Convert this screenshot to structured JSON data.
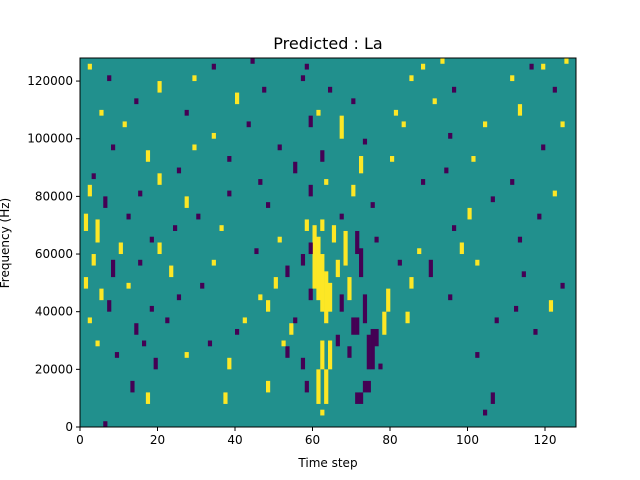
{
  "chart_data": {
    "type": "heatmap",
    "title": "Predicted : La",
    "xlabel": "Time step",
    "ylabel": "Frequency (Hz)",
    "xlim": [
      0,
      128
    ],
    "ylim": [
      0,
      128000
    ],
    "x_ticks": [
      0,
      20,
      40,
      60,
      80,
      100,
      120
    ],
    "y_ticks": [
      0,
      20000,
      40000,
      60000,
      80000,
      100000,
      120000
    ],
    "x_tick_labels": [
      "0",
      "20",
      "40",
      "60",
      "80",
      "100",
      "120"
    ],
    "y_tick_labels": [
      "0",
      "20000",
      "40000",
      "60000",
      "80000",
      "100000",
      "120000"
    ],
    "grid": false,
    "colormap": [
      "#440154",
      "#21908d",
      "#fde725"
    ],
    "background_value": 0,
    "value_levels": [
      -1,
      0,
      1
    ],
    "cells": [
      {
        "x": 6,
        "y0": 0,
        "y1": 2000,
        "v": -1
      },
      {
        "x": 62,
        "y0": 4000,
        "y1": 6000,
        "v": 1
      },
      {
        "x": 104,
        "y0": 4000,
        "y1": 6000,
        "v": -1
      },
      {
        "x": 17,
        "y0": 8000,
        "y1": 12000,
        "v": 1
      },
      {
        "x": 37,
        "y0": 8000,
        "y1": 12000,
        "v": 1
      },
      {
        "x": 61,
        "y0": 8000,
        "y1": 20000,
        "v": 1
      },
      {
        "x": 63,
        "y0": 8000,
        "y1": 20000,
        "v": 1
      },
      {
        "x": 71,
        "y0": 8000,
        "y1": 12000,
        "v": -1
      },
      {
        "x": 72,
        "y0": 8000,
        "y1": 12000,
        "v": -1
      },
      {
        "x": 106,
        "y0": 8000,
        "y1": 12000,
        "v": -1
      },
      {
        "x": 13,
        "y0": 12000,
        "y1": 16000,
        "v": -1
      },
      {
        "x": 48,
        "y0": 12000,
        "y1": 16000,
        "v": 1
      },
      {
        "x": 58,
        "y0": 12000,
        "y1": 16000,
        "v": -1
      },
      {
        "x": 73,
        "y0": 12000,
        "y1": 16000,
        "v": -1
      },
      {
        "x": 74,
        "y0": 12000,
        "y1": 16000,
        "v": -1
      },
      {
        "x": 19,
        "y0": 20000,
        "y1": 24000,
        "v": -1
      },
      {
        "x": 38,
        "y0": 20000,
        "y1": 24000,
        "v": 1
      },
      {
        "x": 57,
        "y0": 20000,
        "y1": 24000,
        "v": -1
      },
      {
        "x": 62,
        "y0": 20000,
        "y1": 30000,
        "v": 1
      },
      {
        "x": 64,
        "y0": 20000,
        "y1": 30000,
        "v": 1
      },
      {
        "x": 74,
        "y0": 20000,
        "y1": 32000,
        "v": -1
      },
      {
        "x": 75,
        "y0": 20000,
        "y1": 34000,
        "v": -1
      },
      {
        "x": 77,
        "y0": 20000,
        "y1": 22000,
        "v": -1
      },
      {
        "x": 9,
        "y0": 24000,
        "y1": 26000,
        "v": -1
      },
      {
        "x": 27,
        "y0": 24000,
        "y1": 26000,
        "v": 1
      },
      {
        "x": 53,
        "y0": 24000,
        "y1": 28000,
        "v": -1
      },
      {
        "x": 69,
        "y0": 24000,
        "y1": 28000,
        "v": -1
      },
      {
        "x": 102,
        "y0": 24000,
        "y1": 26000,
        "v": -1
      },
      {
        "x": 4,
        "y0": 28000,
        "y1": 30000,
        "v": 1
      },
      {
        "x": 16,
        "y0": 28000,
        "y1": 30000,
        "v": -1
      },
      {
        "x": 33,
        "y0": 28000,
        "y1": 30000,
        "v": -1
      },
      {
        "x": 52,
        "y0": 28000,
        "y1": 30000,
        "v": 1
      },
      {
        "x": 66,
        "y0": 28000,
        "y1": 32000,
        "v": -1
      },
      {
        "x": 76,
        "y0": 28000,
        "y1": 34000,
        "v": -1
      },
      {
        "x": 14,
        "y0": 32000,
        "y1": 36000,
        "v": -1
      },
      {
        "x": 40,
        "y0": 32000,
        "y1": 34000,
        "v": -1
      },
      {
        "x": 54,
        "y0": 32000,
        "y1": 36000,
        "v": 1
      },
      {
        "x": 70,
        "y0": 32000,
        "y1": 38000,
        "v": -1
      },
      {
        "x": 71,
        "y0": 32000,
        "y1": 38000,
        "v": -1
      },
      {
        "x": 78,
        "y0": 32000,
        "y1": 40000,
        "v": 1
      },
      {
        "x": 117,
        "y0": 32000,
        "y1": 34000,
        "v": -1
      },
      {
        "x": 2,
        "y0": 36000,
        "y1": 38000,
        "v": 1
      },
      {
        "x": 22,
        "y0": 36000,
        "y1": 38000,
        "v": -1
      },
      {
        "x": 42,
        "y0": 36000,
        "y1": 38000,
        "v": 1
      },
      {
        "x": 55,
        "y0": 36000,
        "y1": 38000,
        "v": -1
      },
      {
        "x": 73,
        "y0": 36000,
        "y1": 46000,
        "v": -1
      },
      {
        "x": 84,
        "y0": 36000,
        "y1": 40000,
        "v": 1
      },
      {
        "x": 107,
        "y0": 36000,
        "y1": 38000,
        "v": -1
      },
      {
        "x": 7,
        "y0": 40000,
        "y1": 44000,
        "v": -1
      },
      {
        "x": 18,
        "y0": 40000,
        "y1": 42000,
        "v": -1
      },
      {
        "x": 48,
        "y0": 40000,
        "y1": 44000,
        "v": 1
      },
      {
        "x": 67,
        "y0": 40000,
        "y1": 46000,
        "v": -1
      },
      {
        "x": 79,
        "y0": 40000,
        "y1": 48000,
        "v": 1
      },
      {
        "x": 112,
        "y0": 40000,
        "y1": 42000,
        "v": -1
      },
      {
        "x": 121,
        "y0": 40000,
        "y1": 44000,
        "v": 1
      },
      {
        "x": 5,
        "y0": 44000,
        "y1": 48000,
        "v": 1
      },
      {
        "x": 25,
        "y0": 44000,
        "y1": 46000,
        "v": -1
      },
      {
        "x": 46,
        "y0": 44000,
        "y1": 46000,
        "v": 1
      },
      {
        "x": 59,
        "y0": 44000,
        "y1": 48000,
        "v": -1
      },
      {
        "x": 69,
        "y0": 44000,
        "y1": 52000,
        "v": 1
      },
      {
        "x": 95,
        "y0": 44000,
        "y1": 46000,
        "v": -1
      },
      {
        "x": 1,
        "y0": 48000,
        "y1": 52000,
        "v": 1
      },
      {
        "x": 12,
        "y0": 48000,
        "y1": 50000,
        "v": 1
      },
      {
        "x": 31,
        "y0": 48000,
        "y1": 50000,
        "v": -1
      },
      {
        "x": 50,
        "y0": 48000,
        "y1": 52000,
        "v": 1
      },
      {
        "x": 60,
        "y0": 48000,
        "y1": 70000,
        "v": 1
      },
      {
        "x": 61,
        "y0": 44000,
        "y1": 66000,
        "v": 1
      },
      {
        "x": 62,
        "y0": 40000,
        "y1": 60000,
        "v": 1
      },
      {
        "x": 63,
        "y0": 36000,
        "y1": 54000,
        "v": 1
      },
      {
        "x": 64,
        "y0": 40000,
        "y1": 50000,
        "v": 1
      },
      {
        "x": 85,
        "y0": 48000,
        "y1": 52000,
        "v": 1
      },
      {
        "x": 124,
        "y0": 48000,
        "y1": 50000,
        "v": -1
      },
      {
        "x": 8,
        "y0": 52000,
        "y1": 58000,
        "v": -1
      },
      {
        "x": 23,
        "y0": 52000,
        "y1": 56000,
        "v": 1
      },
      {
        "x": 53,
        "y0": 52000,
        "y1": 56000,
        "v": -1
      },
      {
        "x": 66,
        "y0": 52000,
        "y1": 58000,
        "v": 1
      },
      {
        "x": 72,
        "y0": 52000,
        "y1": 62000,
        "v": -1
      },
      {
        "x": 90,
        "y0": 52000,
        "y1": 58000,
        "v": -1
      },
      {
        "x": 114,
        "y0": 52000,
        "y1": 54000,
        "v": -1
      },
      {
        "x": 3,
        "y0": 56000,
        "y1": 60000,
        "v": 1
      },
      {
        "x": 15,
        "y0": 56000,
        "y1": 58000,
        "v": -1
      },
      {
        "x": 34,
        "y0": 56000,
        "y1": 58000,
        "v": 1
      },
      {
        "x": 57,
        "y0": 56000,
        "y1": 60000,
        "v": -1
      },
      {
        "x": 68,
        "y0": 56000,
        "y1": 68000,
        "v": 1
      },
      {
        "x": 82,
        "y0": 56000,
        "y1": 58000,
        "v": -1
      },
      {
        "x": 102,
        "y0": 56000,
        "y1": 58000,
        "v": 1
      },
      {
        "x": 10,
        "y0": 60000,
        "y1": 64000,
        "v": 1
      },
      {
        "x": 20,
        "y0": 60000,
        "y1": 64000,
        "v": 1
      },
      {
        "x": 45,
        "y0": 60000,
        "y1": 62000,
        "v": -1
      },
      {
        "x": 59,
        "y0": 60000,
        "y1": 64000,
        "v": -1
      },
      {
        "x": 71,
        "y0": 60000,
        "y1": 68000,
        "v": -1
      },
      {
        "x": 87,
        "y0": 60000,
        "y1": 62000,
        "v": 1
      },
      {
        "x": 98,
        "y0": 60000,
        "y1": 64000,
        "v": 1
      },
      {
        "x": 4,
        "y0": 64000,
        "y1": 72000,
        "v": 1
      },
      {
        "x": 18,
        "y0": 64000,
        "y1": 66000,
        "v": -1
      },
      {
        "x": 51,
        "y0": 64000,
        "y1": 66000,
        "v": 1
      },
      {
        "x": 65,
        "y0": 64000,
        "y1": 70000,
        "v": 1
      },
      {
        "x": 76,
        "y0": 64000,
        "y1": 66000,
        "v": -1
      },
      {
        "x": 113,
        "y0": 64000,
        "y1": 66000,
        "v": -1
      },
      {
        "x": 1,
        "y0": 68000,
        "y1": 74000,
        "v": 1
      },
      {
        "x": 24,
        "y0": 68000,
        "y1": 70000,
        "v": -1
      },
      {
        "x": 36,
        "y0": 68000,
        "y1": 70000,
        "v": 1
      },
      {
        "x": 58,
        "y0": 68000,
        "y1": 72000,
        "v": 1
      },
      {
        "x": 62,
        "y0": 68000,
        "y1": 72000,
        "v": 1
      },
      {
        "x": 96,
        "y0": 68000,
        "y1": 70000,
        "v": -1
      },
      {
        "x": 12,
        "y0": 72000,
        "y1": 74000,
        "v": -1
      },
      {
        "x": 30,
        "y0": 72000,
        "y1": 74000,
        "v": -1
      },
      {
        "x": 67,
        "y0": 72000,
        "y1": 74000,
        "v": -1
      },
      {
        "x": 100,
        "y0": 72000,
        "y1": 76000,
        "v": 1
      },
      {
        "x": 118,
        "y0": 72000,
        "y1": 74000,
        "v": -1
      },
      {
        "x": 6,
        "y0": 76000,
        "y1": 80000,
        "v": -1
      },
      {
        "x": 27,
        "y0": 76000,
        "y1": 80000,
        "v": 1
      },
      {
        "x": 48,
        "y0": 76000,
        "y1": 78000,
        "v": -1
      },
      {
        "x": 75,
        "y0": 76000,
        "y1": 78000,
        "v": -1
      },
      {
        "x": 106,
        "y0": 78000,
        "y1": 80000,
        "v": -1
      },
      {
        "x": 2,
        "y0": 80000,
        "y1": 84000,
        "v": 1
      },
      {
        "x": 15,
        "y0": 80000,
        "y1": 82000,
        "v": -1
      },
      {
        "x": 38,
        "y0": 80000,
        "y1": 82000,
        "v": -1
      },
      {
        "x": 59,
        "y0": 80000,
        "y1": 84000,
        "v": -1
      },
      {
        "x": 70,
        "y0": 80000,
        "y1": 84000,
        "v": 1
      },
      {
        "x": 122,
        "y0": 80000,
        "y1": 82000,
        "v": 1
      },
      {
        "x": 20,
        "y0": 84000,
        "y1": 88000,
        "v": 1
      },
      {
        "x": 46,
        "y0": 84000,
        "y1": 86000,
        "v": -1
      },
      {
        "x": 63,
        "y0": 84000,
        "y1": 86000,
        "v": 1
      },
      {
        "x": 88,
        "y0": 84000,
        "y1": 86000,
        "v": -1
      },
      {
        "x": 111,
        "y0": 84000,
        "y1": 86000,
        "v": -1
      },
      {
        "x": 3,
        "y0": 86000,
        "y1": 88000,
        "v": -1
      },
      {
        "x": 25,
        "y0": 88000,
        "y1": 90000,
        "v": -1
      },
      {
        "x": 55,
        "y0": 88000,
        "y1": 92000,
        "v": -1
      },
      {
        "x": 72,
        "y0": 88000,
        "y1": 94000,
        "v": 1
      },
      {
        "x": 94,
        "y0": 88000,
        "y1": 90000,
        "v": -1
      },
      {
        "x": 17,
        "y0": 92000,
        "y1": 96000,
        "v": 1
      },
      {
        "x": 38,
        "y0": 92000,
        "y1": 94000,
        "v": -1
      },
      {
        "x": 62,
        "y0": 92000,
        "y1": 96000,
        "v": -1
      },
      {
        "x": 80,
        "y0": 92000,
        "y1": 94000,
        "v": 1
      },
      {
        "x": 101,
        "y0": 92000,
        "y1": 94000,
        "v": 1
      },
      {
        "x": 8,
        "y0": 96000,
        "y1": 98000,
        "v": -1
      },
      {
        "x": 29,
        "y0": 96000,
        "y1": 98000,
        "v": 1
      },
      {
        "x": 51,
        "y0": 96000,
        "y1": 98000,
        "v": -1
      },
      {
        "x": 73,
        "y0": 98000,
        "y1": 100000,
        "v": -1
      },
      {
        "x": 119,
        "y0": 96000,
        "y1": 98000,
        "v": -1
      },
      {
        "x": 34,
        "y0": 100000,
        "y1": 102000,
        "v": 1
      },
      {
        "x": 67,
        "y0": 100000,
        "y1": 108000,
        "v": 1
      },
      {
        "x": 95,
        "y0": 100000,
        "y1": 102000,
        "v": -1
      },
      {
        "x": 11,
        "y0": 104000,
        "y1": 106000,
        "v": 1
      },
      {
        "x": 43,
        "y0": 104000,
        "y1": 106000,
        "v": -1
      },
      {
        "x": 59,
        "y0": 104000,
        "y1": 108000,
        "v": -1
      },
      {
        "x": 83,
        "y0": 104000,
        "y1": 106000,
        "v": 1
      },
      {
        "x": 104,
        "y0": 104000,
        "y1": 106000,
        "v": 1
      },
      {
        "x": 124,
        "y0": 104000,
        "y1": 106000,
        "v": 1
      },
      {
        "x": 5,
        "y0": 108000,
        "y1": 110000,
        "v": 1
      },
      {
        "x": 27,
        "y0": 108000,
        "y1": 110000,
        "v": -1
      },
      {
        "x": 61,
        "y0": 108000,
        "y1": 110000,
        "v": 1
      },
      {
        "x": 81,
        "y0": 108000,
        "y1": 110000,
        "v": 1
      },
      {
        "x": 113,
        "y0": 108000,
        "y1": 112000,
        "v": 1
      },
      {
        "x": 14,
        "y0": 112000,
        "y1": 114000,
        "v": -1
      },
      {
        "x": 40,
        "y0": 112000,
        "y1": 116000,
        "v": 1
      },
      {
        "x": 70,
        "y0": 112000,
        "y1": 114000,
        "v": -1
      },
      {
        "x": 91,
        "y0": 112000,
        "y1": 114000,
        "v": 1
      },
      {
        "x": 20,
        "y0": 116000,
        "y1": 120000,
        "v": 1
      },
      {
        "x": 47,
        "y0": 116000,
        "y1": 118000,
        "v": -1
      },
      {
        "x": 64,
        "y0": 116000,
        "y1": 118000,
        "v": -1
      },
      {
        "x": 96,
        "y0": 116000,
        "y1": 118000,
        "v": -1
      },
      {
        "x": 122,
        "y0": 116000,
        "y1": 118000,
        "v": -1
      },
      {
        "x": 7,
        "y0": 120000,
        "y1": 122000,
        "v": -1
      },
      {
        "x": 29,
        "y0": 120000,
        "y1": 122000,
        "v": 1
      },
      {
        "x": 57,
        "y0": 120000,
        "y1": 122000,
        "v": -1
      },
      {
        "x": 85,
        "y0": 120000,
        "y1": 122000,
        "v": 1
      },
      {
        "x": 111,
        "y0": 120000,
        "y1": 122000,
        "v": 1
      },
      {
        "x": 2,
        "y0": 124000,
        "y1": 126000,
        "v": 1
      },
      {
        "x": 34,
        "y0": 124000,
        "y1": 126000,
        "v": -1
      },
      {
        "x": 58,
        "y0": 124000,
        "y1": 126000,
        "v": -1
      },
      {
        "x": 88,
        "y0": 124000,
        "y1": 126000,
        "v": 1
      },
      {
        "x": 116,
        "y0": 124000,
        "y1": 126000,
        "v": -1
      },
      {
        "x": 119,
        "y0": 124000,
        "y1": 126000,
        "v": 1
      },
      {
        "x": 44,
        "y0": 126000,
        "y1": 128000,
        "v": -1
      },
      {
        "x": 93,
        "y0": 126000,
        "y1": 128000,
        "v": 1
      },
      {
        "x": 125,
        "y0": 126000,
        "y1": 128000,
        "v": 1
      }
    ]
  }
}
